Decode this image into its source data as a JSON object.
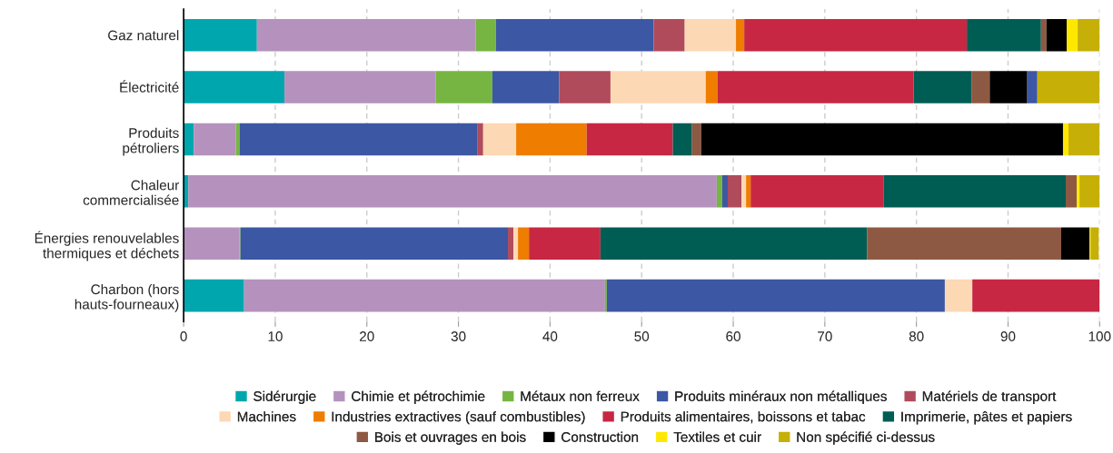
{
  "chart_data": {
    "type": "bar",
    "orientation": "horizontal",
    "stacked": true,
    "categories": [
      "Gaz naturel",
      "Électricité",
      "Produits\npétroliers",
      "Chaleur\ncommercialisée",
      "Énergies renouvelables\nthermiques et déchets",
      "Charbon (hors\nhauts-fourneaux)"
    ],
    "series": [
      {
        "name": "Sidérurgie",
        "color": "#00a6ae",
        "values": [
          8.0,
          11.0,
          1.1,
          0.5,
          null,
          6.6
        ]
      },
      {
        "name": "Chimie et pétrochimie",
        "color": "#b592bd",
        "values": [
          23.9,
          16.5,
          4.6,
          57.7,
          6.1,
          39.4
        ]
      },
      {
        "name": "Métaux non ferreux",
        "color": "#77b543",
        "values": [
          2.2,
          6.2,
          0.4,
          0.6,
          0.1,
          0.2
        ]
      },
      {
        "name": "Produits minéraux non métalliques",
        "color": "#3c57a3",
        "values": [
          17.2,
          7.3,
          26.0,
          0.6,
          29.2,
          36.9
        ]
      },
      {
        "name": "Matériels de transport",
        "color": "#b04b5c",
        "values": [
          3.4,
          5.6,
          0.6,
          1.5,
          0.6,
          null
        ]
      },
      {
        "name": "Machines",
        "color": "#fdd8b4",
        "values": [
          5.6,
          10.4,
          3.6,
          0.5,
          0.5,
          3.0
        ]
      },
      {
        "name": "Industries extractives (sauf combustibles)",
        "color": "#ef7d00",
        "values": [
          0.9,
          1.3,
          7.7,
          0.5,
          1.2,
          null
        ]
      },
      {
        "name": "Produits alimentaires, boissons et tabac",
        "color": "#c72742",
        "values": [
          24.3,
          21.4,
          9.4,
          14.5,
          7.8,
          13.9
        ]
      },
      {
        "name": "Imprimerie, pâtes et papiers",
        "color": "#005d54",
        "values": [
          8.1,
          6.3,
          2.1,
          19.9,
          29.1,
          null
        ]
      },
      {
        "name": "Bois et ouvrages en bois",
        "color": "#8e5942",
        "values": [
          0.6,
          2.0,
          1.0,
          1.2,
          21.2,
          null
        ]
      },
      {
        "name": "Construction",
        "color": "#000000",
        "values": [
          2.2,
          4.1,
          39.5,
          null,
          3.1,
          null
        ]
      },
      {
        "color": "#3c57a3",
        "values": [
          null,
          1.1,
          null,
          null,
          null,
          null
        ]
      },
      {
        "name": "Textiles et cuir",
        "color": "#ffe800",
        "values": [
          1.2,
          null,
          0.6,
          0.3,
          0.1,
          null
        ]
      },
      {
        "name": "Non spécifié ci-dessus",
        "color": "#c6b007",
        "values": [
          2.4,
          6.8,
          3.4,
          2.2,
          0.9,
          null
        ]
      }
    ],
    "xlim": [
      0,
      100
    ],
    "xticks": [
      0,
      10,
      20,
      30,
      40,
      50,
      60,
      70,
      80,
      90,
      100
    ],
    "grid": "x",
    "legend": "bottom"
  }
}
